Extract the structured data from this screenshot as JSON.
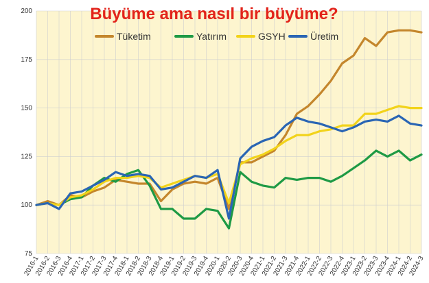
{
  "chart_data": {
    "type": "line",
    "title": "Büyüme ama nasıl bir büyüme?",
    "xlabel": "",
    "ylabel": "",
    "ylim": [
      75,
      200
    ],
    "yticks": [
      75,
      100,
      125,
      150,
      175,
      200
    ],
    "grid": true,
    "legend_position": "top",
    "background": "#fdf5cf",
    "categories": [
      "2016-1",
      "2016-2",
      "2016-3",
      "2016-4",
      "2017-1",
      "2017-2",
      "2017-3",
      "2017-4",
      "2018-1",
      "2018-2",
      "2018-3",
      "2018-4",
      "2019-1",
      "2019-2",
      "2019-3",
      "2019-4",
      "2020-1",
      "2020-2",
      "2020-3",
      "2020-4",
      "2021-1",
      "2021-2",
      "2021-3",
      "2021-4",
      "2022-1",
      "2022-2",
      "2022-3",
      "2022-4",
      "2023-1",
      "2023-2",
      "2023-3",
      "2023-4",
      "2024-1",
      "2024-2",
      "2024-3"
    ],
    "series": [
      {
        "name": "Tüketim",
        "color": "#c4862c",
        "values": [
          100,
          102,
          100,
          105,
          104,
          107,
          109,
          113,
          112,
          111,
          111,
          102,
          108,
          111,
          112,
          111,
          114,
          98,
          122,
          122,
          125,
          128,
          136,
          147,
          151,
          157,
          164,
          173,
          177,
          186,
          182,
          189,
          190,
          190,
          189
        ]
      },
      {
        "name": "Yatırım",
        "color": "#1e9a45",
        "values": [
          100,
          101,
          100,
          103,
          104,
          110,
          114,
          112,
          116,
          118,
          110,
          98,
          98,
          93,
          93,
          98,
          97,
          88,
          117,
          112,
          110,
          109,
          114,
          113,
          114,
          114,
          112,
          115,
          119,
          123,
          128,
          125,
          128,
          123,
          126
        ]
      },
      {
        "name": "GSYH",
        "color": "#f2d31a",
        "values": [
          100,
          101,
          100,
          104,
          105,
          108,
          112,
          114,
          114,
          115,
          114,
          109,
          111,
          113,
          115,
          114,
          116,
          101,
          121,
          124,
          126,
          129,
          133,
          136,
          136,
          138,
          139,
          141,
          141,
          147,
          147,
          149,
          151,
          150,
          150
        ]
      },
      {
        "name": "Üretim",
        "color": "#2a65b4",
        "values": [
          100,
          101,
          98,
          106,
          107,
          110,
          113,
          117,
          115,
          116,
          115,
          108,
          109,
          112,
          115,
          114,
          118,
          93,
          124,
          130,
          133,
          135,
          141,
          145,
          143,
          142,
          140,
          138,
          140,
          143,
          144,
          143,
          146,
          142,
          141
        ]
      }
    ]
  }
}
